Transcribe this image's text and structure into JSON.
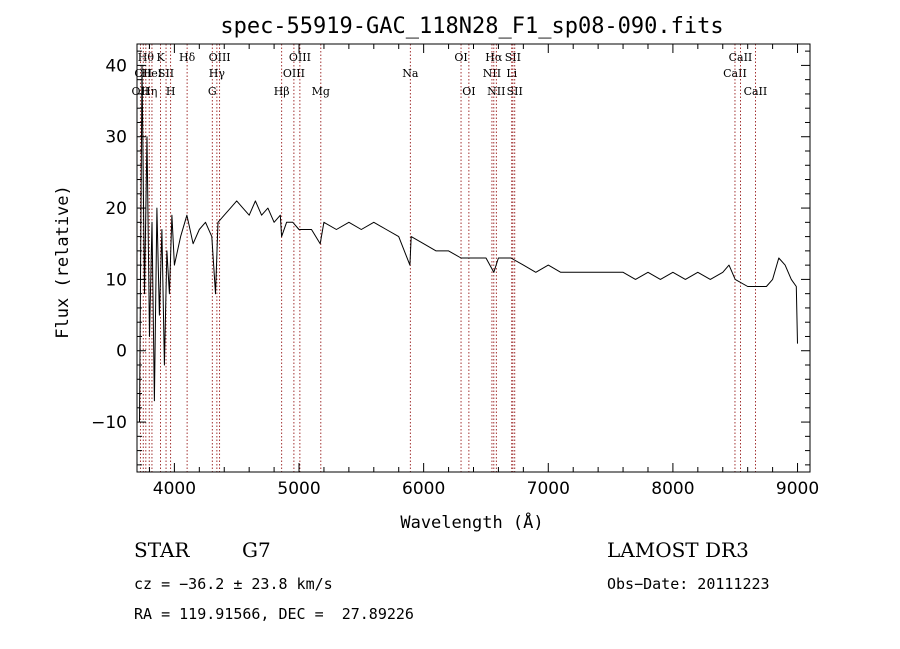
{
  "chart_data": {
    "type": "line",
    "title": "spec-55919-GAC_118N28_F1_sp08-090.fits",
    "xlabel": "Wavelength (Å)",
    "ylabel": "Flux (relative)",
    "xlim": [
      3700,
      9100
    ],
    "ylim": [
      -17,
      43
    ],
    "xticks": [
      4000,
      5000,
      6000,
      7000,
      8000,
      9000
    ],
    "yticks": [
      -10,
      0,
      10,
      20,
      30,
      40
    ],
    "ytick_labels": [
      "−10",
      "0",
      "10",
      "20",
      "30",
      "40"
    ],
    "line_color": "#000000",
    "marker_color": "#8b0000",
    "spectrum_series": {
      "name": "flux",
      "x": [
        3720,
        3740,
        3760,
        3780,
        3800,
        3820,
        3840,
        3860,
        3880,
        3900,
        3920,
        3940,
        3960,
        3980,
        4000,
        4050,
        4100,
        4150,
        4200,
        4250,
        4300,
        4330,
        4350,
        4400,
        4450,
        4500,
        4550,
        4600,
        4650,
        4700,
        4750,
        4800,
        4850,
        4860,
        4900,
        4950,
        5000,
        5100,
        5170,
        5200,
        5300,
        5400,
        5500,
        5600,
        5700,
        5800,
        5890,
        5900,
        6000,
        6100,
        6200,
        6300,
        6400,
        6500,
        6563,
        6600,
        6700,
        6800,
        6900,
        7000,
        7100,
        7200,
        7300,
        7400,
        7500,
        7600,
        7700,
        7800,
        7900,
        8000,
        8100,
        8200,
        8300,
        8400,
        8450,
        8500,
        8600,
        8700,
        8750,
        8800,
        8850,
        8900,
        8950,
        8990,
        9000
      ],
      "y": [
        -10,
        40,
        8,
        30,
        2,
        18,
        -7,
        20,
        5,
        17,
        -2,
        14,
        8,
        19,
        12,
        16,
        19,
        15,
        17,
        18,
        16,
        8,
        18,
        19,
        20,
        21,
        20,
        19,
        21,
        19,
        20,
        18,
        19,
        16,
        18,
        18,
        17,
        17,
        15,
        18,
        17,
        18,
        17,
        18,
        17,
        16,
        12,
        16,
        15,
        14,
        14,
        13,
        13,
        13,
        11,
        13,
        13,
        12,
        11,
        12,
        11,
        11,
        11,
        11,
        11,
        11,
        10,
        11,
        10,
        11,
        10,
        11,
        10,
        11,
        12,
        10,
        9,
        9,
        9,
        10,
        13,
        12,
        10,
        9,
        1
      ]
    },
    "spectral_lines": [
      {
        "x": 3727,
        "label": "OII",
        "row": 3
      },
      {
        "x": 3750,
        "label": "OII",
        "row": 2
      },
      {
        "x": 3771,
        "label": "Hθ",
        "row": 1
      },
      {
        "x": 3798,
        "label": "Hη",
        "row": 3
      },
      {
        "x": 3820,
        "label": "HeI",
        "row": 2
      },
      {
        "x": 3889,
        "label": "K",
        "row": 1
      },
      {
        "x": 3933,
        "label": "SII",
        "row": 2
      },
      {
        "x": 3970,
        "label": "H",
        "row": 3
      },
      {
        "x": 4102,
        "label": "Hδ",
        "row": 1
      },
      {
        "x": 4304,
        "label": "G",
        "row": 3
      },
      {
        "x": 4341,
        "label": "Hγ",
        "row": 2
      },
      {
        "x": 4363,
        "label": "OIII",
        "row": 1
      },
      {
        "x": 4861,
        "label": "Hβ",
        "row": 3
      },
      {
        "x": 4959,
        "label": "OIII",
        "row": 2
      },
      {
        "x": 5007,
        "label": "OIII",
        "row": 1
      },
      {
        "x": 5175,
        "label": "Mg",
        "row": 3
      },
      {
        "x": 5893,
        "label": "Na",
        "row": 2
      },
      {
        "x": 6300,
        "label": "OI",
        "row": 1
      },
      {
        "x": 6363,
        "label": "OI",
        "row": 3
      },
      {
        "x": 6548,
        "label": "NII",
        "row": 2
      },
      {
        "x": 6563,
        "label": "Hα",
        "row": 1
      },
      {
        "x": 6583,
        "label": "NII",
        "row": 3
      },
      {
        "x": 6707,
        "label": "Li",
        "row": 2
      },
      {
        "x": 6716,
        "label": "SII",
        "row": 1
      },
      {
        "x": 6731,
        "label": "SII",
        "row": 3
      },
      {
        "x": 8498,
        "label": "CaII",
        "row": 2
      },
      {
        "x": 8542,
        "label": "CaII",
        "row": 1
      },
      {
        "x": 8662,
        "label": "CaII",
        "row": 3
      }
    ]
  },
  "info": {
    "object_class": "STAR",
    "subclass": "G7",
    "survey": "LAMOST DR3",
    "redshift_line": "cz = −36.2 ± 23.8 km/s",
    "obs_date_line": "Obs−Date: 20111223",
    "coords_line": "RA = 119.91566, DEC =  27.89226"
  }
}
